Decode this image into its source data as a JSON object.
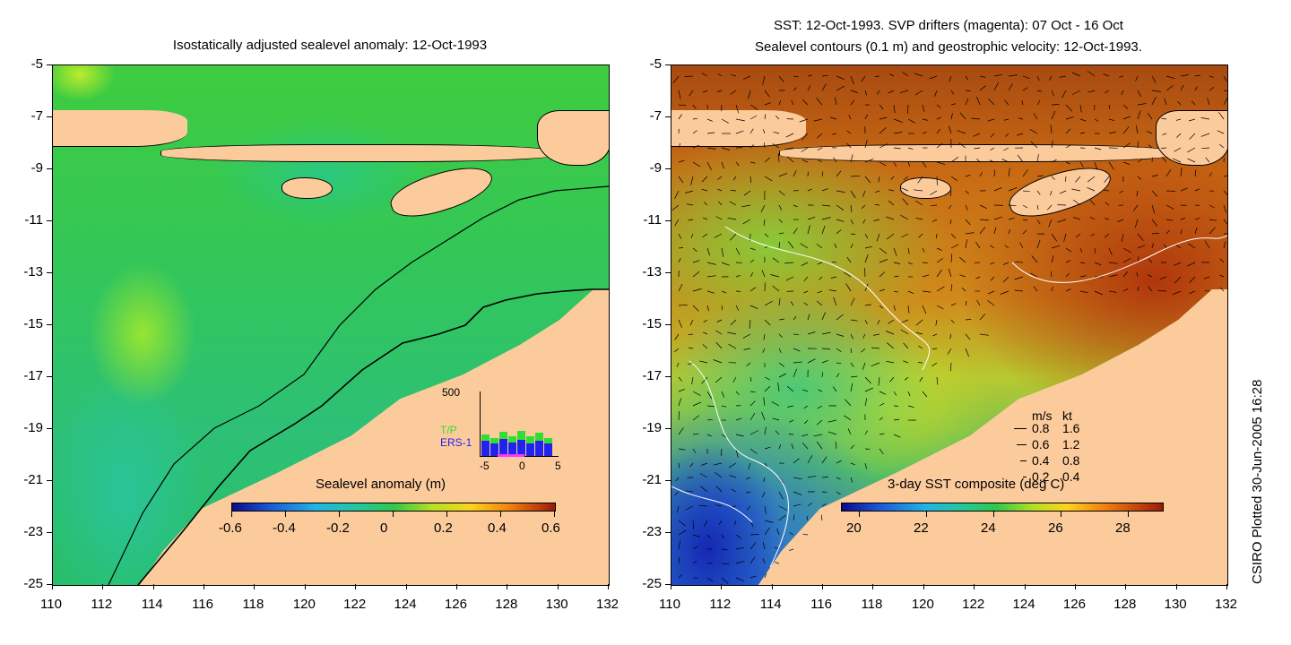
{
  "left_panel": {
    "title": "Isostatically adjusted sealevel anomaly: 12-Oct-1993",
    "y_ticks": [
      "-5",
      "-7",
      "-9",
      "-11",
      "-13",
      "-15",
      "-17",
      "-19",
      "-21",
      "-23",
      "-25"
    ],
    "x_ticks": [
      "110",
      "112",
      "114",
      "116",
      "118",
      "120",
      "122",
      "124",
      "126",
      "128",
      "130",
      "132"
    ],
    "colorbar_title": "Sealevel anomaly (m)",
    "colorbar_ticks": [
      "-0.6",
      "-0.4",
      "-0.2",
      "0",
      "0.2",
      "0.4",
      "0.6"
    ],
    "histogram": {
      "y_max_label": "500",
      "series_labels": [
        "T/P",
        "ERS-1"
      ],
      "series_colors": [
        "#33dd33",
        "#2222ee"
      ],
      "x_ticks": [
        "-5",
        "0",
        "5"
      ]
    }
  },
  "right_panel": {
    "title_line1": "SST: 12-Oct-1993. SVP drifters (magenta): 07 Oct - 16 Oct",
    "title_line2": "Sealevel contours (0.1 m) and geostrophic velocity: 12-Oct-1993.",
    "y_ticks": [
      "-5",
      "-7",
      "-9",
      "-11",
      "-13",
      "-15",
      "-17",
      "-19",
      "-21",
      "-23",
      "-25"
    ],
    "x_ticks": [
      "110",
      "112",
      "114",
      "116",
      "118",
      "120",
      "122",
      "124",
      "126",
      "128",
      "130",
      "132"
    ],
    "colorbar_title": "3-day SST composite (deg C)",
    "colorbar_ticks": [
      "20",
      "22",
      "24",
      "26",
      "28"
    ],
    "velocity_legend": {
      "header_ms": "m/s",
      "header_kt": "kt",
      "rows": [
        {
          "ms": "0.8",
          "kt": "1.6"
        },
        {
          "ms": "0.6",
          "kt": "1.2"
        },
        {
          "ms": "0.4",
          "kt": "0.8"
        },
        {
          "ms": "0.2",
          "kt": "0.4"
        }
      ]
    }
  },
  "side_label": "CSIRO Plotted 30-Jun-2005 16:28",
  "colors": {
    "land": "#fccb9c",
    "ocean_sla": "#22cc55",
    "sst_warm": "#d06010",
    "sst_cool": "#1a3fcc"
  }
}
